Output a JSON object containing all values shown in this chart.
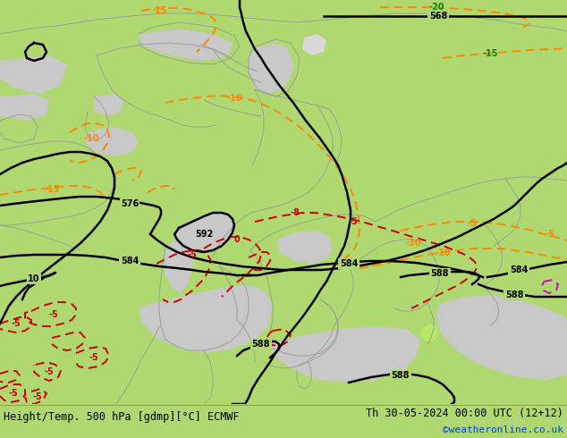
{
  "title_left": "Height/Temp. 500 hPa [gdmp][°C] ECMWF",
  "title_right": "Th 30-05-2024 00:00 UTC (12+12)",
  "credit": "©weatheronline.co.uk",
  "bg_green": "#b0d870",
  "gray_land": "#c8c8c8",
  "gray_sea": "#c0c0c0",
  "black": "#000000",
  "orange": "#ff8800",
  "red": "#cc0000",
  "dark_green": "#008800",
  "magenta": "#cc00cc",
  "border_gray": "#989898",
  "text_black": "#000000",
  "credit_blue": "#0044cc",
  "figsize": [
    6.34,
    4.9
  ],
  "dpi": 100
}
